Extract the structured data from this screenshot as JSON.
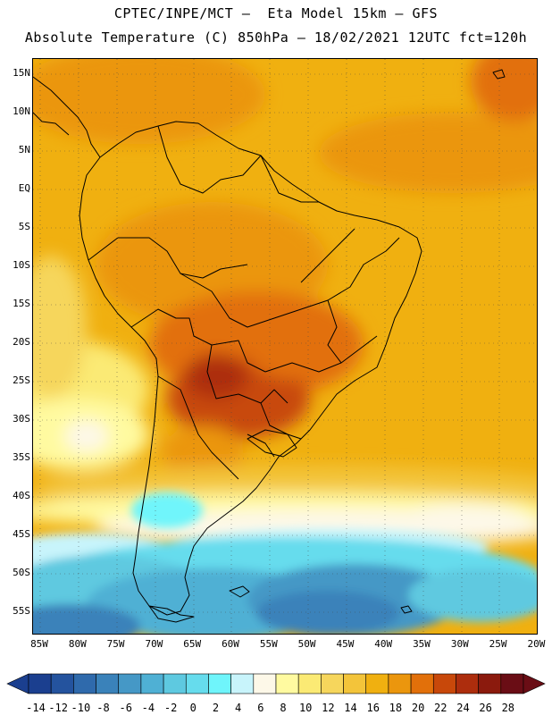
{
  "header": {
    "title_line1": "CPTEC/INPE/MCT –  Eta Model 15km – GFS",
    "title_line2": "Absolute Temperature (C) 850hPa – 18/02/2021 12UTC fct=120h"
  },
  "axes": {
    "lat_labels": [
      "15N",
      "10N",
      "5N",
      "EQ",
      "5S",
      "10S",
      "15S",
      "20S",
      "25S",
      "30S",
      "35S",
      "40S",
      "45S",
      "50S",
      "55S"
    ],
    "lon_labels": [
      "85W",
      "80W",
      "75W",
      "70W",
      "65W",
      "60W",
      "55W",
      "50W",
      "45W",
      "40W",
      "35W",
      "30W",
      "25W",
      "20W"
    ],
    "grid": "dotted"
  },
  "colorbar": {
    "labels": [
      "-14",
      "-12",
      "-10",
      "-8",
      "-6",
      "-4",
      "-2",
      "0",
      "2",
      "4",
      "6",
      "8",
      "10",
      "12",
      "14",
      "16",
      "18",
      "20",
      "22",
      "24",
      "26",
      "28"
    ],
    "colors": [
      "#1b3f8f",
      "#24539e",
      "#2f6aac",
      "#3a82ba",
      "#4598c6",
      "#4fb0d4",
      "#5ec9e0",
      "#66dced",
      "#6ff5fb",
      "#c8f4fb",
      "#fdf8e8",
      "#fffaa0",
      "#fbea74",
      "#f6d65c",
      "#f3c43a",
      "#f0b010",
      "#eb960d",
      "#e2700a",
      "#c8480a",
      "#ad2d0d",
      "#8b1a0d",
      "#6a0d15"
    ]
  },
  "legend": {
    "unit": "C",
    "range": [
      -14,
      28
    ]
  }
}
